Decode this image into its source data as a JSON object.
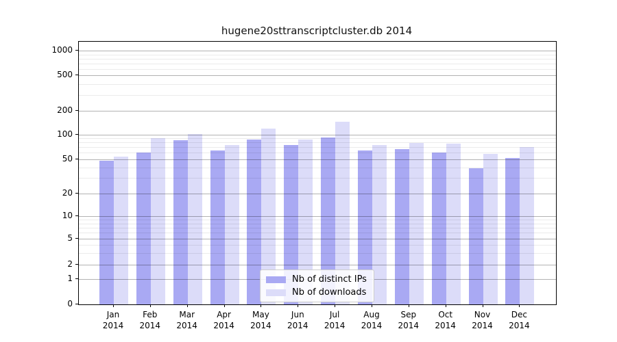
{
  "title": "hugene20sttranscriptcluster.db 2014",
  "colors": {
    "distinct_ips": "#a9a9f3",
    "downloads": "#dcdcf9",
    "axis": "#000000",
    "legend_border": "#cccccc"
  },
  "legend": {
    "items": [
      {
        "label": "Nb of distinct IPs",
        "series_key": "distinct_ips"
      },
      {
        "label": "Nb of downloads",
        "series_key": "downloads"
      }
    ]
  },
  "chart_data": {
    "type": "bar",
    "title": "hugene20sttranscriptcluster.db 2014",
    "xlabel": "",
    "ylabel": "",
    "months": [
      "Jan",
      "Feb",
      "Mar",
      "Apr",
      "May",
      "Jun",
      "Jul",
      "Aug",
      "Sep",
      "Oct",
      "Nov",
      "Dec"
    ],
    "year": "2014",
    "categories": [
      "Jan 2014",
      "Feb 2014",
      "Mar 2014",
      "Apr 2014",
      "May 2014",
      "Jun 2014",
      "Jul 2014",
      "Aug 2014",
      "Sep 2014",
      "Oct 2014",
      "Nov 2014",
      "Dec 2014"
    ],
    "series": [
      {
        "name": "Nb of distinct IPs",
        "color_key": "distinct_ips",
        "values": [
          48,
          60,
          85,
          64,
          88,
          75,
          92,
          64,
          66,
          60,
          39,
          52
        ]
      },
      {
        "name": "Nb of downloads",
        "color_key": "downloads",
        "values": [
          54,
          90,
          103,
          75,
          119,
          88,
          144,
          74,
          79,
          77,
          58,
          70
        ]
      }
    ],
    "y_ticks": [
      0,
      1,
      2,
      5,
      10,
      20,
      50,
      100,
      200,
      500,
      1000
    ],
    "yscale": "log-like",
    "ylim": [
      0,
      1300
    ],
    "grid": true,
    "grid_above_bars": true,
    "legend_position": "inside-bottom-center"
  }
}
